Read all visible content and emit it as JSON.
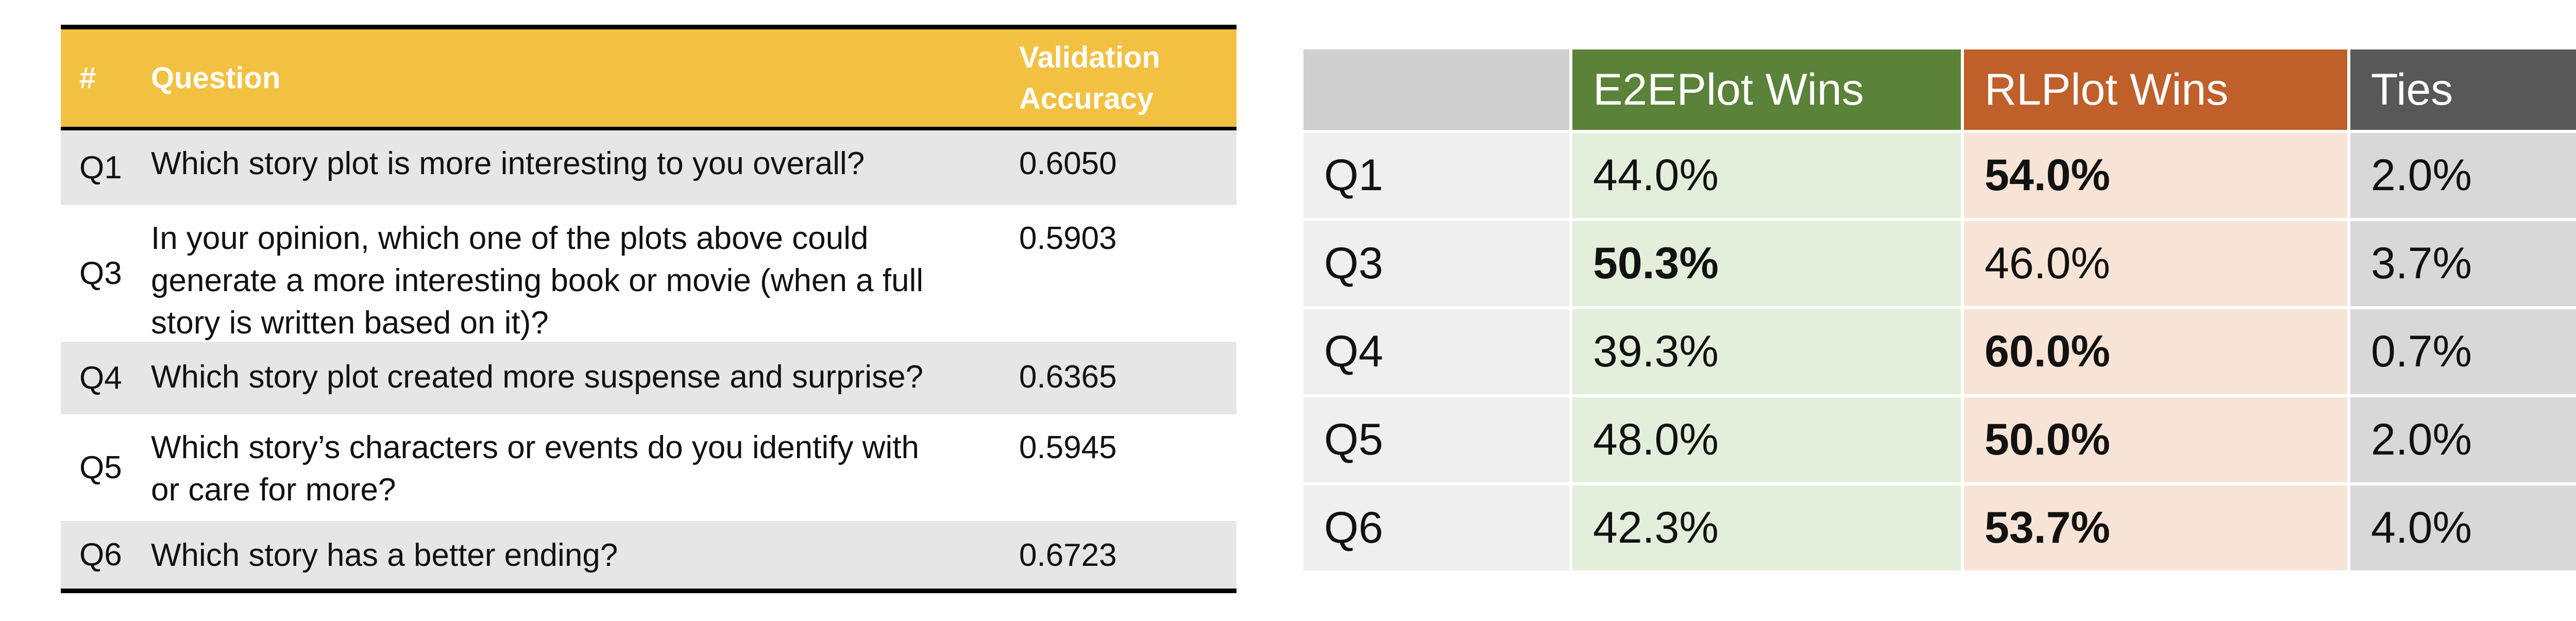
{
  "left_table": {
    "headers": {
      "num": "#",
      "question": "Question",
      "accuracy_line1": "Validation",
      "accuracy_line2": "Accuracy"
    },
    "rows": [
      {
        "num": "Q1",
        "question_lines": [
          "Which story plot is more interesting to you overall?"
        ],
        "accuracy": "0.6050"
      },
      {
        "num": "Q3",
        "question_lines": [
          "In your opinion, which one of the plots above could",
          "generate a more interesting book or movie (when a full",
          "story is written based on it)?"
        ],
        "accuracy": "0.5903"
      },
      {
        "num": "Q4",
        "question_lines": [
          "Which story plot created more suspense and surprise?"
        ],
        "accuracy": "0.6365"
      },
      {
        "num": "Q5",
        "question_lines": [
          "Which story’s characters or events do you identify with",
          "or care for more?"
        ],
        "accuracy": "0.5945"
      },
      {
        "num": "Q6",
        "question_lines": [
          "Which story has a better ending?"
        ],
        "accuracy": "0.6723"
      }
    ]
  },
  "right_table": {
    "headers": {
      "label": "",
      "e2e": "E2EPlot Wins",
      "rl": "RLPlot Wins",
      "ties": "Ties"
    },
    "rows": [
      {
        "label": "Q1",
        "e2e": "44.0%",
        "rl": "54.0%",
        "ties": "2.0%",
        "bold": "rl"
      },
      {
        "label": "Q3",
        "e2e": "50.3%",
        "rl": "46.0%",
        "ties": "3.7%",
        "bold": "e2e"
      },
      {
        "label": "Q4",
        "e2e": "39.3%",
        "rl": "60.0%",
        "ties": "0.7%",
        "bold": "rl"
      },
      {
        "label": "Q5",
        "e2e": "48.0%",
        "rl": "50.0%",
        "ties": "2.0%",
        "bold": "rl"
      },
      {
        "label": "Q6",
        "e2e": "42.3%",
        "rl": "53.7%",
        "ties": "4.0%",
        "bold": "rl"
      }
    ],
    "colors": {
      "e2e_header": "#5a8238",
      "rl_header": "#bf5f2a",
      "ties_header": "#585858",
      "label_header": "#d0cfcf"
    }
  }
}
